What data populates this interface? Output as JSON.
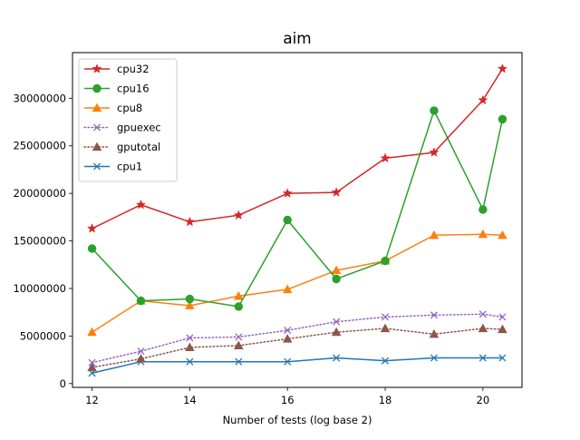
{
  "chart_data": {
    "type": "line",
    "title": "aim",
    "xlabel": "Number of tests (log base 2)",
    "ylabel": "",
    "xlim": [
      11.6,
      20.8
    ],
    "ylim": [
      -400000,
      34800000
    ],
    "xticks": [
      12,
      14,
      16,
      18,
      20
    ],
    "yticks": [
      0,
      5000000,
      10000000,
      15000000,
      20000000,
      25000000,
      30000000
    ],
    "x": [
      12,
      13,
      14,
      15,
      16,
      17,
      18,
      19,
      20,
      20.4
    ],
    "grid": false,
    "legend_position": "upper-left",
    "series": [
      {
        "name": "cpu32",
        "color": "#d62728",
        "marker": "star",
        "linestyle": "solid",
        "values": [
          16300000,
          18800000,
          17000000,
          17700000,
          20000000,
          20100000,
          23700000,
          24300000,
          29800000,
          33100000
        ]
      },
      {
        "name": "cpu16",
        "color": "#2ca02c",
        "marker": "circle",
        "linestyle": "solid",
        "values": [
          14200000,
          8700000,
          8900000,
          8100000,
          17200000,
          11000000,
          12900000,
          28700000,
          18300000,
          27800000
        ]
      },
      {
        "name": "cpu8",
        "color": "#ff7f0e",
        "marker": "triangle",
        "linestyle": "solid",
        "values": [
          5400000,
          8700000,
          8200000,
          9200000,
          9900000,
          11900000,
          12900000,
          15600000,
          15700000,
          15600000
        ]
      },
      {
        "name": "gpuexec",
        "color": "#9467bd",
        "marker": "x",
        "linestyle": "dotted",
        "values": [
          2200000,
          3400000,
          4800000,
          4900000,
          5600000,
          6500000,
          7000000,
          7200000,
          7300000,
          7000000
        ]
      },
      {
        "name": "gputotal",
        "color": "#8c564b",
        "marker": "triangle",
        "linestyle": "dotted",
        "values": [
          1700000,
          2600000,
          3800000,
          4000000,
          4700000,
          5400000,
          5800000,
          5200000,
          5800000,
          5700000
        ]
      },
      {
        "name": "cpu1",
        "color": "#1f77b4",
        "marker": "x",
        "linestyle": "solid",
        "values": [
          1100000,
          2300000,
          2300000,
          2300000,
          2300000,
          2700000,
          2400000,
          2700000,
          2700000,
          2700000
        ]
      }
    ]
  }
}
